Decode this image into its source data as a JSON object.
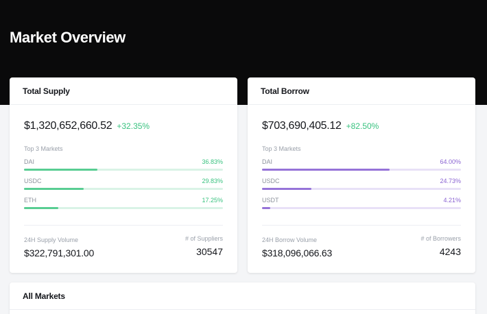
{
  "page": {
    "title": "Market Overview"
  },
  "supply": {
    "header": "Total Supply",
    "amount": "$1,320,652,660.52",
    "change": "+32.35%",
    "section_label": "Top 3 Markets",
    "markets": [
      {
        "name": "DAI",
        "pct": "36.83%",
        "fill": 0.3683
      },
      {
        "name": "USDC",
        "pct": "29.83%",
        "fill": 0.2983
      },
      {
        "name": "ETH",
        "pct": "17.25%",
        "fill": 0.1725
      }
    ],
    "volume_label": "24H Supply Volume",
    "volume_value": "$322,791,301.00",
    "count_label": "# of Suppliers",
    "count_value": "30547",
    "accent_color": "#38c27f"
  },
  "borrow": {
    "header": "Total Borrow",
    "amount": "$703,690,405.12",
    "change": "+82.50%",
    "section_label": "Top 3 Markets",
    "markets": [
      {
        "name": "DAI",
        "pct": "64.00%",
        "fill": 0.64
      },
      {
        "name": "USDC",
        "pct": "24.73%",
        "fill": 0.2473
      },
      {
        "name": "USDT",
        "pct": "4.21%",
        "fill": 0.0421
      }
    ],
    "volume_label": "24H Borrow Volume",
    "volume_value": "$318,096,066.63",
    "count_label": "# of Borrowers",
    "count_value": "4243",
    "accent_color": "#8a63d2"
  },
  "all_markets": {
    "header": "All Markets"
  }
}
